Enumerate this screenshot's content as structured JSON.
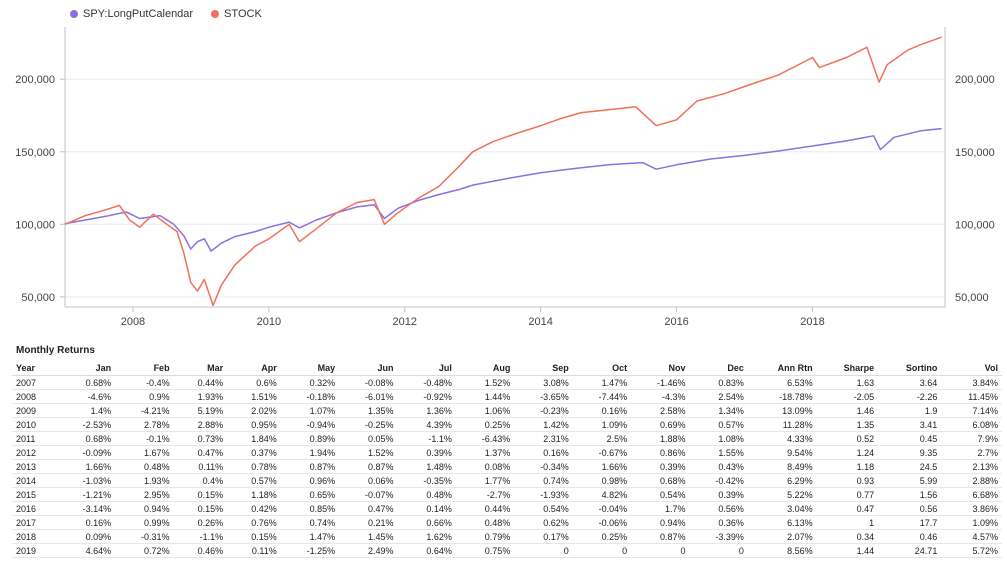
{
  "chart_data": {
    "type": "line",
    "series": [
      {
        "name": "SPY:LongPutCalendar",
        "color": "#8c6fe0",
        "points": [
          [
            2007.0,
            100500
          ],
          [
            2007.3,
            103000
          ],
          [
            2007.6,
            105500
          ],
          [
            2007.9,
            108500
          ],
          [
            2008.1,
            104000
          ],
          [
            2008.4,
            106000
          ],
          [
            2008.6,
            100000
          ],
          [
            2008.75,
            92000
          ],
          [
            2008.85,
            83000
          ],
          [
            2008.95,
            88000
          ],
          [
            2009.05,
            90000
          ],
          [
            2009.15,
            81500
          ],
          [
            2009.3,
            87000
          ],
          [
            2009.5,
            91500
          ],
          [
            2009.8,
            95000
          ],
          [
            2010.0,
            98000
          ],
          [
            2010.3,
            101500
          ],
          [
            2010.45,
            97500
          ],
          [
            2010.7,
            103000
          ],
          [
            2011.0,
            108000
          ],
          [
            2011.3,
            112000
          ],
          [
            2011.55,
            113500
          ],
          [
            2011.7,
            104000
          ],
          [
            2011.9,
            111000
          ],
          [
            2012.2,
            116500
          ],
          [
            2012.5,
            120500
          ],
          [
            2012.8,
            124000
          ],
          [
            2013.0,
            127000
          ],
          [
            2013.5,
            131500
          ],
          [
            2014.0,
            135500
          ],
          [
            2014.5,
            138500
          ],
          [
            2015.0,
            141000
          ],
          [
            2015.5,
            142500
          ],
          [
            2015.7,
            138000
          ],
          [
            2016.0,
            141000
          ],
          [
            2016.5,
            145000
          ],
          [
            2017.0,
            147500
          ],
          [
            2017.5,
            150500
          ],
          [
            2018.0,
            154000
          ],
          [
            2018.5,
            157500
          ],
          [
            2018.9,
            161000
          ],
          [
            2019.0,
            151500
          ],
          [
            2019.2,
            160000
          ],
          [
            2019.6,
            164500
          ],
          [
            2019.9,
            166000
          ]
        ]
      },
      {
        "name": "STOCK",
        "color": "#f0705a",
        "points": [
          [
            2007.0,
            100000
          ],
          [
            2007.3,
            106000
          ],
          [
            2007.6,
            110000
          ],
          [
            2007.8,
            113000
          ],
          [
            2007.95,
            103000
          ],
          [
            2008.1,
            98000
          ],
          [
            2008.3,
            107000
          ],
          [
            2008.5,
            100000
          ],
          [
            2008.65,
            95000
          ],
          [
            2008.75,
            80000
          ],
          [
            2008.85,
            60000
          ],
          [
            2008.95,
            54000
          ],
          [
            2009.05,
            62000
          ],
          [
            2009.18,
            44000
          ],
          [
            2009.3,
            58000
          ],
          [
            2009.5,
            72000
          ],
          [
            2009.8,
            85000
          ],
          [
            2010.0,
            90000
          ],
          [
            2010.3,
            100000
          ],
          [
            2010.45,
            88000
          ],
          [
            2010.7,
            97000
          ],
          [
            2011.0,
            108000
          ],
          [
            2011.3,
            115000
          ],
          [
            2011.55,
            117000
          ],
          [
            2011.7,
            100000
          ],
          [
            2011.9,
            108000
          ],
          [
            2012.2,
            118000
          ],
          [
            2012.5,
            126000
          ],
          [
            2012.8,
            140000
          ],
          [
            2013.0,
            150000
          ],
          [
            2013.3,
            157000
          ],
          [
            2013.6,
            162000
          ],
          [
            2014.0,
            168000
          ],
          [
            2014.3,
            173000
          ],
          [
            2014.6,
            177000
          ],
          [
            2015.0,
            179000
          ],
          [
            2015.4,
            181000
          ],
          [
            2015.7,
            168000
          ],
          [
            2016.0,
            172000
          ],
          [
            2016.3,
            185000
          ],
          [
            2016.7,
            190000
          ],
          [
            2017.0,
            195000
          ],
          [
            2017.5,
            203000
          ],
          [
            2018.0,
            215000
          ],
          [
            2018.1,
            208000
          ],
          [
            2018.5,
            215000
          ],
          [
            2018.8,
            222000
          ],
          [
            2018.98,
            198000
          ],
          [
            2019.1,
            210000
          ],
          [
            2019.4,
            220000
          ],
          [
            2019.6,
            224000
          ],
          [
            2019.9,
            229000
          ]
        ]
      }
    ],
    "x_ticks": [
      {
        "value": 2008,
        "label": "2008"
      },
      {
        "value": 2010,
        "label": "2010"
      },
      {
        "value": 2012,
        "label": "2012"
      },
      {
        "value": 2014,
        "label": "2014"
      },
      {
        "value": 2016,
        "label": "2016"
      },
      {
        "value": 2018,
        "label": "2018"
      }
    ],
    "y_ticks": [
      {
        "value": 50000,
        "label": "50,000"
      },
      {
        "value": 100000,
        "label": "100,000"
      },
      {
        "value": 150000,
        "label": "150,000"
      },
      {
        "value": 200000,
        "label": "200,000"
      }
    ],
    "xlim": [
      2007.0,
      2019.95
    ],
    "ylim": [
      43000,
      236000
    ],
    "grid": true,
    "legend_position": "top-left"
  },
  "table": {
    "title": "Monthly Returns",
    "headers": [
      "Year",
      "Jan",
      "Feb",
      "Mar",
      "Apr",
      "May",
      "Jun",
      "Jul",
      "Aug",
      "Sep",
      "Oct",
      "Nov",
      "Dec",
      "Ann Rtn",
      "Sharpe",
      "Sortino",
      "Vol"
    ],
    "rows": [
      [
        "2007",
        "0.68%",
        "-0.4%",
        "0.44%",
        "0.6%",
        "0.32%",
        "-0.08%",
        "-0.48%",
        "1.52%",
        "3.08%",
        "1.47%",
        "-1.46%",
        "0.83%",
        "6.53%",
        "1.63",
        "3.64",
        "3.84%"
      ],
      [
        "2008",
        "-4.6%",
        "0.9%",
        "1.93%",
        "1.51%",
        "-0.18%",
        "-6.01%",
        "-0.92%",
        "1.44%",
        "-3.65%",
        "-7.44%",
        "-4.3%",
        "2.54%",
        "-18.78%",
        "-2.05",
        "-2.26",
        "11.45%"
      ],
      [
        "2009",
        "1.4%",
        "-4.21%",
        "5.19%",
        "2.02%",
        "1.07%",
        "1.35%",
        "1.36%",
        "1.06%",
        "-0.23%",
        "0.16%",
        "2.58%",
        "1.34%",
        "13.09%",
        "1.46",
        "1.9",
        "7.14%"
      ],
      [
        "2010",
        "-2.53%",
        "2.78%",
        "2.88%",
        "0.95%",
        "-0.94%",
        "-0.25%",
        "4.39%",
        "0.25%",
        "1.42%",
        "1.09%",
        "0.69%",
        "0.57%",
        "11.28%",
        "1.35",
        "3.41",
        "6.08%"
      ],
      [
        "2011",
        "0.68%",
        "-0.1%",
        "0.73%",
        "1.84%",
        "0.89%",
        "0.05%",
        "-1.1%",
        "-6.43%",
        "2.31%",
        "2.5%",
        "1.88%",
        "1.08%",
        "4.33%",
        "0.52",
        "0.45",
        "7.9%"
      ],
      [
        "2012",
        "-0.09%",
        "1.67%",
        "0.47%",
        "0.37%",
        "1.94%",
        "1.52%",
        "0.39%",
        "1.37%",
        "0.16%",
        "-0.67%",
        "0.86%",
        "1.55%",
        "9.54%",
        "1.24",
        "9.35",
        "2.7%"
      ],
      [
        "2013",
        "1.66%",
        "0.48%",
        "0.11%",
        "0.78%",
        "0.87%",
        "0.87%",
        "1.48%",
        "0.08%",
        "-0.34%",
        "1.66%",
        "0.39%",
        "0.43%",
        "8.49%",
        "1.18",
        "24.5",
        "2.13%"
      ],
      [
        "2014",
        "-1.03%",
        "1.93%",
        "0.4%",
        "0.57%",
        "0.96%",
        "0.06%",
        "-0.35%",
        "1.77%",
        "0.74%",
        "0.98%",
        "0.68%",
        "-0.42%",
        "6.29%",
        "0.93",
        "5.99",
        "2.88%"
      ],
      [
        "2015",
        "-1.21%",
        "2.95%",
        "0.15%",
        "1.18%",
        "0.65%",
        "-0.07%",
        "0.48%",
        "-2.7%",
        "-1.93%",
        "4.82%",
        "0.54%",
        "0.39%",
        "5.22%",
        "0.77",
        "1.56",
        "6.68%"
      ],
      [
        "2016",
        "-3.14%",
        "0.94%",
        "0.15%",
        "0.42%",
        "0.85%",
        "0.47%",
        "0.14%",
        "0.44%",
        "0.54%",
        "-0.04%",
        "1.7%",
        "0.56%",
        "3.04%",
        "0.47",
        "0.56",
        "3.86%"
      ],
      [
        "2017",
        "0.16%",
        "0.99%",
        "0.26%",
        "0.76%",
        "0.74%",
        "0.21%",
        "0.66%",
        "0.48%",
        "0.62%",
        "-0.06%",
        "0.94%",
        "0.36%",
        "6.13%",
        "1",
        "17.7",
        "1.09%"
      ],
      [
        "2018",
        "0.09%",
        "-0.31%",
        "-1.1%",
        "0.15%",
        "1.47%",
        "1.45%",
        "1.62%",
        "0.79%",
        "0.17%",
        "0.25%",
        "0.87%",
        "-3.39%",
        "2.07%",
        "0.34",
        "0.46",
        "4.57%"
      ],
      [
        "2019",
        "4.64%",
        "0.72%",
        "0.46%",
        "0.11%",
        "-1.25%",
        "2.49%",
        "0.64%",
        "0.75%",
        "0",
        "0",
        "0",
        "0",
        "8.56%",
        "1.44",
        "24.71",
        "5.72%"
      ]
    ]
  }
}
